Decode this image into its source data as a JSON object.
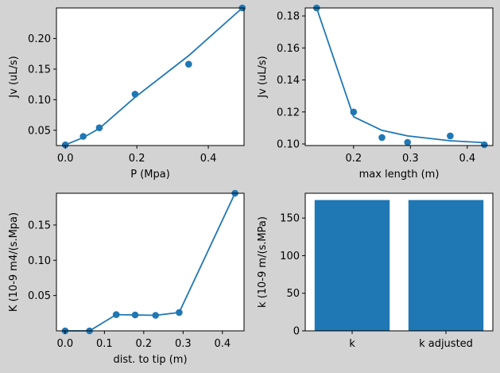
{
  "colors": {
    "figure_bg": "#d3d3d3",
    "axes_bg": "#ffffff",
    "series": "#1f77b4"
  },
  "chart_data": [
    {
      "type": "line",
      "markers": true,
      "xlabel": "P (Mpa)",
      "ylabel": "Jv (uL/s)",
      "xlim": [
        -0.025,
        0.5
      ],
      "ylim": [
        0.025,
        0.25
      ],
      "xticks": [
        {
          "v": 0.0,
          "label": "0.0"
        },
        {
          "v": 0.2,
          "label": "0.2"
        },
        {
          "v": 0.4,
          "label": "0.4"
        }
      ],
      "yticks": [
        {
          "v": 0.05,
          "label": "0.05"
        },
        {
          "v": 0.1,
          "label": "0.10"
        },
        {
          "v": 0.15,
          "label": "0.15"
        },
        {
          "v": 0.2,
          "label": "0.20"
        }
      ],
      "points": {
        "x": [
          0.0,
          0.05,
          0.095,
          0.195,
          0.345,
          0.495
        ],
        "y": [
          0.026,
          0.04,
          0.054,
          0.109,
          0.158,
          0.25
        ]
      },
      "fit": {
        "x": [
          0.0,
          0.05,
          0.095,
          0.195,
          0.345,
          0.495
        ],
        "y": [
          0.026,
          0.038,
          0.053,
          0.104,
          0.172,
          0.25
        ]
      }
    },
    {
      "type": "line",
      "markers": true,
      "xlabel": "max length (m)",
      "ylabel": "Jv (uL/s)",
      "xlim": [
        0.115,
        0.445
      ],
      "ylim": [
        0.099,
        0.185
      ],
      "xticks": [
        {
          "v": 0.2,
          "label": "0.2"
        },
        {
          "v": 0.3,
          "label": "0.3"
        },
        {
          "v": 0.4,
          "label": "0.4"
        }
      ],
      "yticks": [
        {
          "v": 0.1,
          "label": "0.10"
        },
        {
          "v": 0.12,
          "label": "0.12"
        },
        {
          "v": 0.14,
          "label": "0.14"
        },
        {
          "v": 0.16,
          "label": "0.16"
        },
        {
          "v": 0.18,
          "label": "0.18"
        }
      ],
      "points": {
        "x": [
          0.135,
          0.2,
          0.25,
          0.295,
          0.37,
          0.43
        ],
        "y": [
          0.185,
          0.12,
          0.104,
          0.101,
          0.105,
          0.0995
        ]
      },
      "fit": {
        "x": [
          0.135,
          0.2,
          0.25,
          0.295,
          0.37,
          0.43
        ],
        "y": [
          0.185,
          0.117,
          0.1085,
          0.105,
          0.102,
          0.1008
        ]
      }
    },
    {
      "type": "line",
      "markers": true,
      "xlabel": "dist. to tip (m)",
      "ylabel": "K (10-9 m4/(s.Mpa)",
      "xlim": [
        -0.022,
        0.455
      ],
      "ylim": [
        0.0,
        0.195
      ],
      "xticks": [
        {
          "v": 0.0,
          "label": "0.0"
        },
        {
          "v": 0.1,
          "label": "0.1"
        },
        {
          "v": 0.2,
          "label": "0.2"
        },
        {
          "v": 0.3,
          "label": "0.3"
        },
        {
          "v": 0.4,
          "label": "0.4"
        }
      ],
      "yticks": [
        {
          "v": 0.05,
          "label": "0.05"
        },
        {
          "v": 0.1,
          "label": "0.10"
        },
        {
          "v": 0.15,
          "label": "0.15"
        }
      ],
      "points": {
        "x": [
          0.0,
          0.062,
          0.13,
          0.178,
          0.23,
          0.29,
          0.432
        ],
        "y": [
          0.0,
          0.0,
          0.023,
          0.0225,
          0.022,
          0.026,
          0.195
        ]
      }
    },
    {
      "type": "bar",
      "xlabel": "",
      "ylabel": "k (10-9 m/(s.MPa)",
      "categories": [
        "k",
        "k adjusted"
      ],
      "values": [
        174,
        174
      ],
      "ylim": [
        0,
        183
      ],
      "yticks": [
        {
          "v": 0,
          "label": "0"
        },
        {
          "v": 50,
          "label": "50"
        },
        {
          "v": 100,
          "label": "100"
        },
        {
          "v": 150,
          "label": "150"
        }
      ]
    }
  ]
}
